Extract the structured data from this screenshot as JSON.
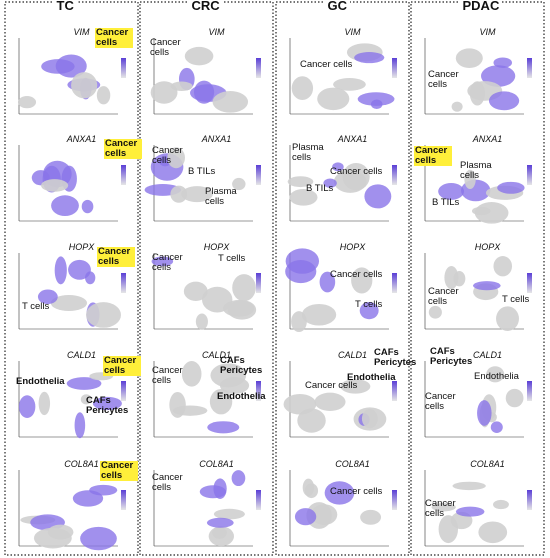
{
  "columns": [
    {
      "title": "TC",
      "panels": [
        {
          "gene": "VIM",
          "labels": [
            {
              "text": "Cancer cells",
              "highlight": true,
              "bold": true
            }
          ]
        },
        {
          "gene": "ANXA1",
          "labels": [
            {
              "text": "Cancer cells",
              "highlight": true,
              "bold": true
            }
          ]
        },
        {
          "gene": "HOPX",
          "labels": [
            {
              "text": "Cancer cells",
              "highlight": true,
              "bold": true
            },
            {
              "text": "T cells"
            }
          ]
        },
        {
          "gene": "CALD1",
          "labels": [
            {
              "text": "Cancer cells",
              "highlight": true,
              "bold": true
            },
            {
              "text": "Endothelia",
              "bold": true
            },
            {
              "text": "CAFs Pericytes",
              "bold": true
            }
          ]
        },
        {
          "gene": "COL8A1",
          "labels": [
            {
              "text": "Cancer cells",
              "highlight": true,
              "bold": true
            }
          ]
        }
      ]
    },
    {
      "title": "CRC",
      "panels": [
        {
          "gene": "VIM",
          "labels": [
            {
              "text": "Cancer cells"
            }
          ]
        },
        {
          "gene": "ANXA1",
          "labels": [
            {
              "text": "Cancer cells"
            },
            {
              "text": "B TILs"
            },
            {
              "text": "Plasma cells"
            }
          ]
        },
        {
          "gene": "HOPX",
          "labels": [
            {
              "text": "Cancer cells"
            },
            {
              "text": "T cells"
            }
          ]
        },
        {
          "gene": "CALD1",
          "labels": [
            {
              "text": "Cancer cells"
            },
            {
              "text": "CAFs Pericytes",
              "bold": true
            },
            {
              "text": "Endothelia",
              "bold": true
            }
          ]
        },
        {
          "gene": "COL8A1",
          "labels": [
            {
              "text": "Cancer cells"
            }
          ]
        }
      ]
    },
    {
      "title": "GC",
      "panels": [
        {
          "gene": "VIM",
          "labels": [
            {
              "text": "Cancer cells"
            }
          ]
        },
        {
          "gene": "ANXA1",
          "labels": [
            {
              "text": "Plasma cells"
            },
            {
              "text": "Cancer cells"
            },
            {
              "text": "B TILs"
            }
          ]
        },
        {
          "gene": "HOPX",
          "labels": [
            {
              "text": "Cancer cells"
            },
            {
              "text": "T cells"
            }
          ]
        },
        {
          "gene": "CALD1",
          "labels": [
            {
              "text": "CAFs Pericytes",
              "bold": true
            },
            {
              "text": "Endothelia",
              "bold": true
            },
            {
              "text": "Cancer cells"
            }
          ]
        },
        {
          "gene": "COL8A1",
          "labels": [
            {
              "text": "Cancer cells"
            }
          ]
        }
      ]
    },
    {
      "title": "PDAC",
      "panels": [
        {
          "gene": "VIM",
          "labels": [
            {
              "text": "Cancer cells"
            }
          ]
        },
        {
          "gene": "ANXA1",
          "labels": [
            {
              "text": "Cancer cells",
              "highlight": true,
              "bold": true
            },
            {
              "text": "Plasma cells"
            },
            {
              "text": "B TILs"
            }
          ]
        },
        {
          "gene": "HOPX",
          "labels": [
            {
              "text": "Cancer cells"
            },
            {
              "text": "T cells"
            }
          ]
        },
        {
          "gene": "CALD1",
          "labels": [
            {
              "text": "CAFs Pericytes",
              "bold": true
            },
            {
              "text": "Endothelia"
            },
            {
              "text": "Cancer cells"
            }
          ]
        },
        {
          "gene": "COL8A1",
          "labels": [
            {
              "text": "Cancer cells"
            }
          ]
        }
      ]
    }
  ]
}
